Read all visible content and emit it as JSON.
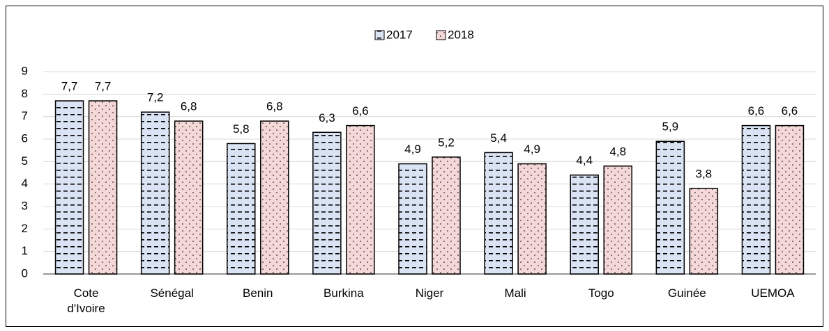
{
  "chart_data": {
    "type": "bar",
    "categories": [
      "Cote d'Ivoire",
      "Sénégal",
      "Benin",
      "Burkina",
      "Niger",
      "Mali",
      "Togo",
      "Guinée",
      "UEMOA"
    ],
    "series": [
      {
        "name": "2017",
        "color": "#dae3f3",
        "values": [
          7.7,
          7.2,
          5.8,
          6.3,
          4.9,
          5.4,
          4.4,
          5.9,
          6.6
        ],
        "value_labels": [
          "7,7",
          "7,2",
          "5,8",
          "6,3",
          "4,9",
          "5,4",
          "4,4",
          "5,9",
          "6,6"
        ]
      },
      {
        "name": "2018",
        "color": "#f4d7d7",
        "values": [
          7.7,
          6.8,
          6.8,
          6.6,
          5.2,
          4.9,
          4.8,
          3.8,
          6.6
        ],
        "value_labels": [
          "7,7",
          "6,8",
          "6,8",
          "6,6",
          "5,2",
          "4,9",
          "4,8",
          "3,8",
          "6,6"
        ]
      }
    ],
    "ylim": [
      0,
      9
    ],
    "yticks": [
      0,
      1,
      2,
      3,
      4,
      5,
      6,
      7,
      8,
      9
    ],
    "grid": true,
    "legend": "top"
  }
}
